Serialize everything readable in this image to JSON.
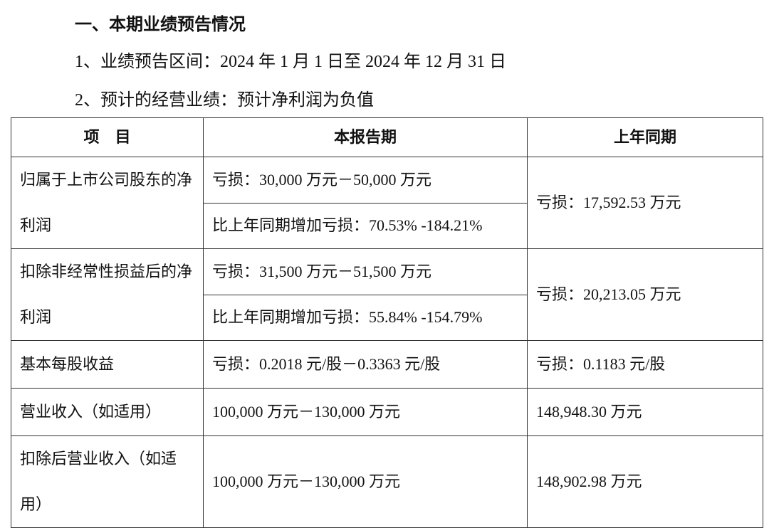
{
  "section_title": "一、本期业绩预告情况",
  "items": [
    "1、业绩预告区间：2024 年 1 月 1 日至 2024 年 12 月 31 日",
    "2、预计的经营业绩：预计净利润为负值"
  ],
  "table": {
    "headers": [
      "项　目",
      "本报告期",
      "上年同期"
    ],
    "rows": [
      {
        "label": "归属于上市公司股东的净利润",
        "current": [
          "亏损：30,000 万元－50,000 万元",
          "比上年同期增加亏损：70.53% -184.21%"
        ],
        "prior": "亏损：17,592.53 万元"
      },
      {
        "label": "扣除非经常性损益后的净利润",
        "current": [
          "亏损：31,500 万元－51,500 万元",
          "比上年同期增加亏损：55.84% -154.79%"
        ],
        "prior": "亏损：20,213.05 万元"
      },
      {
        "label": "基本每股收益",
        "current": [
          "亏损：0.2018 元/股－0.3363 元/股"
        ],
        "prior": "亏损：0.1183 元/股"
      },
      {
        "label": "营业收入（如适用）",
        "current": [
          "100,000 万元－130,000 万元"
        ],
        "prior": "148,948.30 万元"
      },
      {
        "label": "扣除后营业收入（如适用）",
        "current": [
          "100,000 万元－130,000 万元"
        ],
        "prior": "148,902.98 万元"
      }
    ]
  }
}
